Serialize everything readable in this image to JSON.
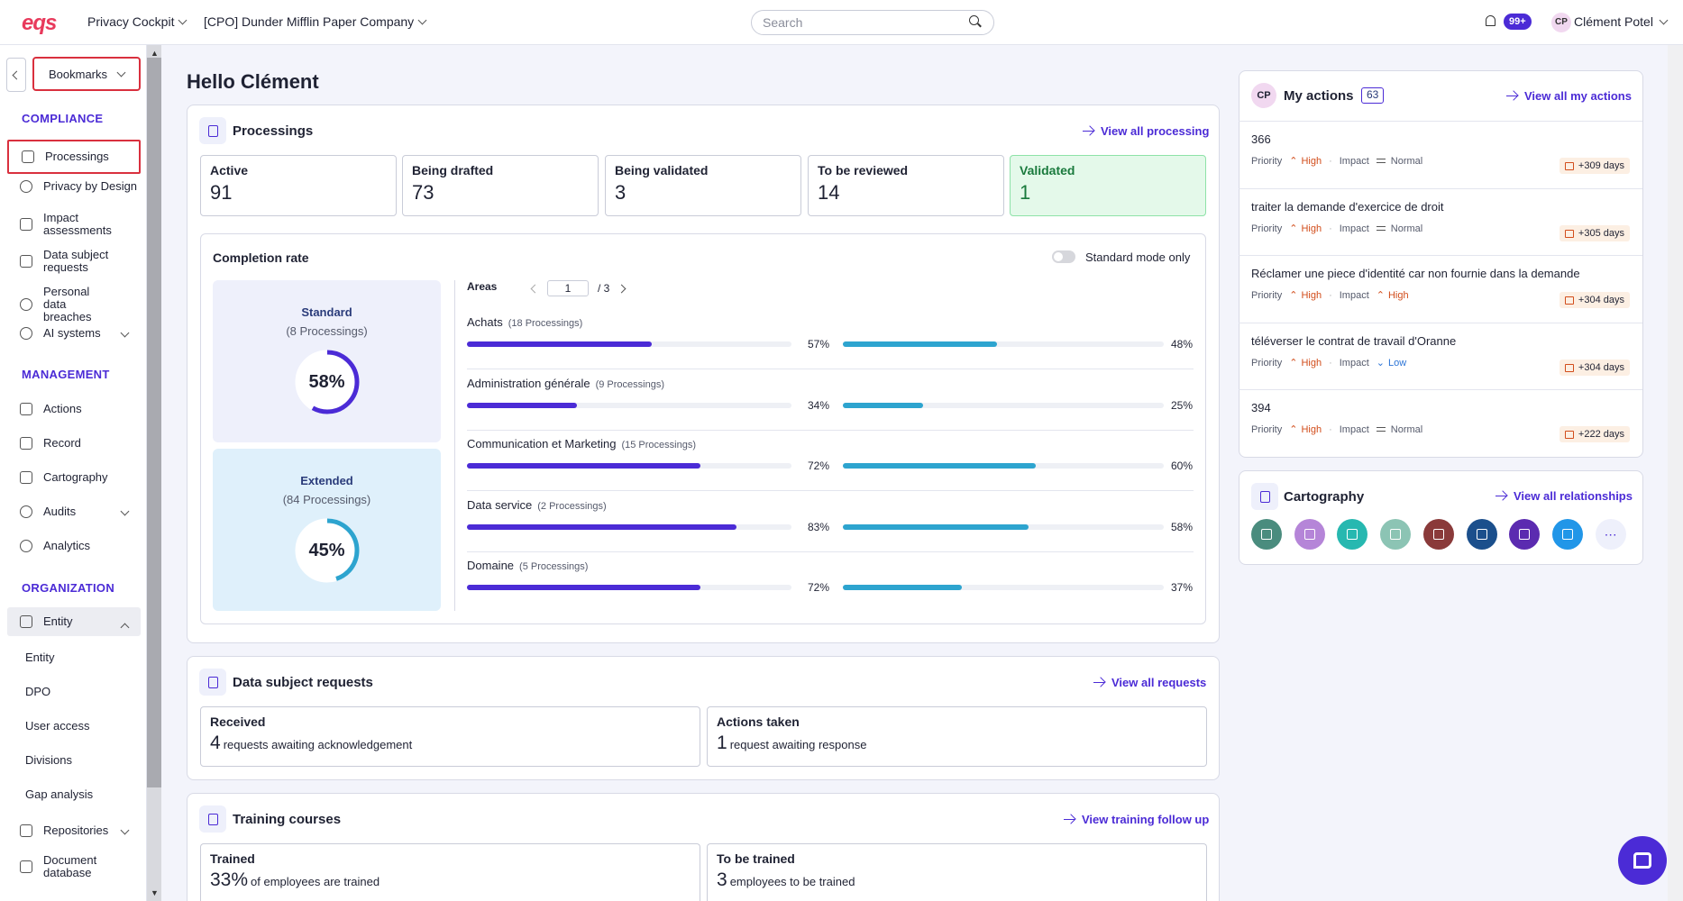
{
  "topbar": {
    "logo": "eqs",
    "app_selector": "Privacy Cockpit",
    "company_selector": "[CPO] Dunder Mifflin Paper Company",
    "search_placeholder": "Search",
    "notifications_badge": "99+",
    "user_initials": "CP",
    "user_name": "Clément Potel"
  },
  "sidebar": {
    "bookmarks_label": "Bookmarks",
    "sections": {
      "compliance": "COMPLIANCE",
      "management": "MANAGEMENT",
      "organization": "ORGANIZATION"
    },
    "items": [
      {
        "label": "Processings"
      },
      {
        "label": "Privacy by Design"
      },
      {
        "label": "Impact assessments"
      },
      {
        "label": "Data subject requests"
      },
      {
        "label": "Personal data breaches"
      },
      {
        "label": "AI systems"
      },
      {
        "label": "Actions"
      },
      {
        "label": "Record"
      },
      {
        "label": "Cartography"
      },
      {
        "label": "Audits"
      },
      {
        "label": "Analytics"
      },
      {
        "label": "Entity"
      },
      {
        "label": "Entity"
      },
      {
        "label": "DPO"
      },
      {
        "label": "User access"
      },
      {
        "label": "Divisions"
      },
      {
        "label": "Gap analysis"
      },
      {
        "label": "Repositories"
      },
      {
        "label": "Document database"
      }
    ]
  },
  "greeting": "Hello Clément",
  "processings": {
    "title": "Processings",
    "link": "View all processing",
    "stats": [
      {
        "label": "Active",
        "value": "91"
      },
      {
        "label": "Being drafted",
        "value": "73"
      },
      {
        "label": "Being validated",
        "value": "3"
      },
      {
        "label": "To be reviewed",
        "value": "14"
      },
      {
        "label": "Validated",
        "value": "1"
      }
    ],
    "completion": {
      "title": "Completion rate",
      "toggle_label": "Standard mode only",
      "standard": {
        "title": "Standard",
        "subtitle": "(8 Processings)",
        "value": "58%",
        "percent": 58
      },
      "extended": {
        "title": "Extended",
        "subtitle": "(84 Processings)",
        "value": "45%",
        "percent": 45
      },
      "areas_label": "Areas",
      "page_current": "1",
      "page_total": "/ 3",
      "areas": [
        {
          "name": "Achats",
          "count": "(18 Processings)",
          "p1": 57,
          "p1_label": "57%",
          "p2": 48,
          "p2_label": "48%"
        },
        {
          "name": "Administration générale",
          "count": "(9 Processings)",
          "p1": 34,
          "p1_label": "34%",
          "p2": 25,
          "p2_label": "25%"
        },
        {
          "name": "Communication et Marketing",
          "count": "(15 Processings)",
          "p1": 72,
          "p1_label": "72%",
          "p2": 60,
          "p2_label": "60%"
        },
        {
          "name": "Data service",
          "count": "(2 Processings)",
          "p1": 83,
          "p1_label": "83%",
          "p2": 58,
          "p2_label": "58%"
        },
        {
          "name": "Domaine",
          "count": "(5 Processings)",
          "p1": 72,
          "p1_label": "72%",
          "p2": 37,
          "p2_label": "37%"
        }
      ]
    }
  },
  "dsr": {
    "title": "Data subject requests",
    "link": "View all requests",
    "received": {
      "label": "Received",
      "value": "4",
      "text": "requests awaiting acknowledgement"
    },
    "actions": {
      "label": "Actions taken",
      "value": "1",
      "text": "request awaiting response"
    }
  },
  "training": {
    "title": "Training courses",
    "link": "View training follow up",
    "trained": {
      "label": "Trained",
      "value": "33%",
      "text": "of employees are trained"
    },
    "to_train": {
      "label": "To be trained",
      "value": "3",
      "text": "employees to be trained"
    }
  },
  "my_actions": {
    "initials": "CP",
    "title": "My actions",
    "count": "63",
    "link": "View all my actions",
    "priority_label": "Priority",
    "impact_label": "Impact",
    "items": [
      {
        "title": "366",
        "priority": "High",
        "impact": "Normal",
        "days": "+309 days"
      },
      {
        "title": "traiter la demande d'exercice de droit",
        "priority": "High",
        "impact": "Normal",
        "days": "+305 days"
      },
      {
        "title": "Réclamer une piece d'identité car non fournie dans la demande",
        "priority": "High",
        "impact": "High",
        "days": "+304 days"
      },
      {
        "title": "téléverser le contrat de travail d'Oranne",
        "priority": "High",
        "impact": "Low",
        "days": "+304 days"
      },
      {
        "title": "394",
        "priority": "High",
        "impact": "Normal",
        "days": "+222 days"
      }
    ]
  },
  "cartography": {
    "title": "Cartography",
    "link": "View all relationships",
    "icons": [
      {
        "name": "list-icon",
        "color": "#4a8c7e"
      },
      {
        "name": "shield-icon",
        "color": "#b585d8"
      },
      {
        "name": "document-icon",
        "color": "#27b8b0"
      },
      {
        "name": "database-icon",
        "color": "#8cc4b4"
      },
      {
        "name": "report-icon",
        "color": "#8a3a3a"
      },
      {
        "name": "people-icon",
        "color": "#1b4f8c"
      },
      {
        "name": "bank-icon",
        "color": "#5b2bb0"
      },
      {
        "name": "window-icon",
        "color": "#2196e8"
      },
      {
        "name": "more-icon",
        "color": "#eef0fb"
      }
    ]
  },
  "colors": {
    "accent": "#4b2bd6",
    "brand": "#e83a5c",
    "bar_standard": "#4b2bd6",
    "bar_extended": "#2da4cf"
  }
}
